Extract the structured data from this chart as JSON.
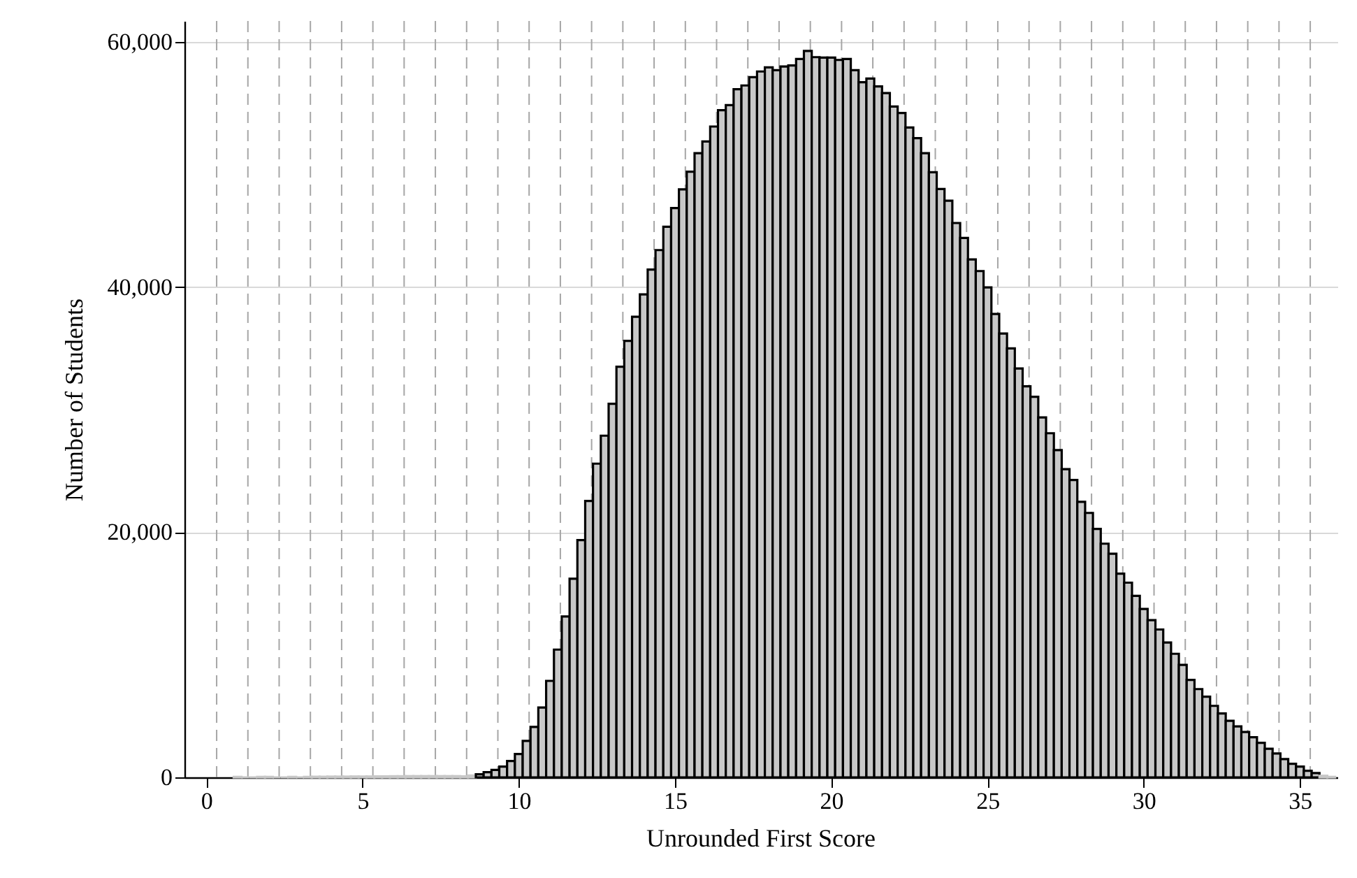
{
  "chart_data": {
    "type": "histogram",
    "xlabel": "Unrounded First Score",
    "ylabel": "Number of Students",
    "color": "#c8c8c8",
    "bins": [
      0.875,
      1.125,
      1.375,
      1.625,
      1.875,
      2.125,
      2.375,
      2.625,
      2.875,
      3.125,
      3.375,
      3.625,
      3.875,
      4.125,
      4.375,
      4.625,
      4.875,
      5.125,
      5.375,
      5.625,
      5.875,
      6.125,
      6.375,
      6.625,
      6.875,
      7.125,
      7.375,
      7.625,
      7.875,
      8.125,
      8.375,
      8.625,
      8.875,
      9.125,
      9.375,
      9.625,
      9.875,
      10.125,
      10.375,
      10.625,
      10.875,
      11.125,
      11.375,
      11.625,
      11.875,
      12.125,
      12.375,
      12.625,
      12.875,
      13.125,
      13.375,
      13.625,
      13.875,
      14.125,
      14.375,
      14.625,
      14.875,
      15.125,
      15.375,
      15.625,
      15.875,
      16.125,
      16.375,
      16.625,
      16.875,
      17.125,
      17.375,
      17.625,
      17.875,
      18.125,
      18.375,
      18.625,
      18.875,
      19.125,
      19.375,
      19.625,
      19.875,
      20.125,
      20.375,
      20.625,
      20.875,
      21.125,
      21.375,
      21.625,
      21.875,
      22.125,
      22.375,
      22.625,
      22.875,
      23.125,
      23.375,
      23.625,
      23.875,
      24.125,
      24.375,
      24.625,
      24.875,
      25.125,
      25.375,
      25.625,
      25.875,
      26.125,
      26.375,
      26.625,
      26.875,
      27.125,
      27.375,
      27.625,
      27.875,
      28.125,
      28.375,
      28.625,
      28.875,
      29.125,
      29.375,
      29.625,
      29.875,
      30.125,
      30.375,
      30.625,
      30.875,
      31.125,
      31.375,
      31.625,
      31.875,
      32.125,
      32.375,
      32.625,
      32.875,
      33.125,
      33.375,
      33.625,
      33.875,
      34.125,
      34.375,
      34.625,
      34.875,
      35.125,
      35.375,
      35.625,
      35.875,
      36.125
    ],
    "values": [
      40,
      0,
      0,
      40,
      40,
      0,
      0,
      40,
      0,
      40,
      50,
      50,
      60,
      60,
      60,
      70,
      70,
      70,
      80,
      80,
      90,
      90,
      100,
      100,
      100,
      100,
      100,
      100,
      100,
      80,
      150,
      250,
      420,
      610,
      880,
      1330,
      1900,
      2970,
      4110,
      5700,
      7870,
      10420,
      13120,
      16200,
      19350,
      22550,
      25590,
      27870,
      30470,
      33500,
      35600,
      37570,
      39400,
      41420,
      43010,
      44910,
      46440,
      47960,
      49400,
      50920,
      51870,
      53090,
      54420,
      54840,
      56130,
      56440,
      57120,
      57580,
      57920,
      57690,
      57990,
      58070,
      58600,
      59250,
      58750,
      58710,
      58710,
      58520,
      58600,
      57690,
      56700,
      57000,
      56360,
      55820,
      54720,
      54190,
      53010,
      52140,
      50920,
      49360,
      47990,
      47040,
      45220,
      44000,
      42250,
      41300,
      39970,
      37800,
      36200,
      34990,
      33350,
      31900,
      31040,
      29360,
      28070,
      26700,
      25140,
      24260,
      22480,
      21570,
      20270,
      19060,
      18240,
      16620,
      15880,
      14800,
      13730,
      12820,
      12060,
      11000,
      10080,
      9170,
      7950,
      7200,
      6580,
      5830,
      5210,
      4610,
      4150,
      3700,
      3270,
      2820,
      2330,
      1950,
      1490,
      1110,
      880,
      540,
      350,
      130,
      40
    ],
    "xlim": [
      -0.7,
      36.2
    ],
    "xticks": [
      0,
      5,
      10,
      15,
      20,
      25,
      30,
      35
    ],
    "ylim": [
      0,
      61700
    ],
    "yticks": [
      {
        "value": 0,
        "label": "0"
      },
      {
        "value": 20000,
        "label": "20,000"
      },
      {
        "value": 40000,
        "label": "40,000"
      },
      {
        "value": 60000,
        "label": "60,000"
      }
    ],
    "grid": "y",
    "ref_lines": [
      {
        "axis": "x",
        "value": 0.33,
        "color": "#a6a6a6",
        "line_style": "dashed"
      },
      {
        "axis": "x",
        "value": 1.33,
        "color": "#a6a6a6",
        "line_style": "dashed"
      },
      {
        "axis": "x",
        "value": 2.33,
        "color": "#a6a6a6",
        "line_style": "dashed"
      },
      {
        "axis": "x",
        "value": 3.33,
        "color": "#a6a6a6",
        "line_style": "dashed"
      },
      {
        "axis": "x",
        "value": 4.33,
        "color": "#a6a6a6",
        "line_style": "dashed"
      },
      {
        "axis": "x",
        "value": 5.33,
        "color": "#a6a6a6",
        "line_style": "dashed"
      },
      {
        "axis": "x",
        "value": 6.33,
        "color": "#a6a6a6",
        "line_style": "dashed"
      },
      {
        "axis": "x",
        "value": 7.33,
        "color": "#a6a6a6",
        "line_style": "dashed"
      },
      {
        "axis": "x",
        "value": 8.33,
        "color": "#a6a6a6",
        "line_style": "dashed"
      },
      {
        "axis": "x",
        "value": 9.33,
        "color": "#a6a6a6",
        "line_style": "dashed"
      },
      {
        "axis": "x",
        "value": 10.33,
        "color": "#a6a6a6",
        "line_style": "dashed"
      },
      {
        "axis": "x",
        "value": 11.33,
        "color": "#a6a6a6",
        "line_style": "dashed"
      },
      {
        "axis": "x",
        "value": 12.33,
        "color": "#a6a6a6",
        "line_style": "dashed"
      },
      {
        "axis": "x",
        "value": 13.33,
        "color": "#a6a6a6",
        "line_style": "dashed"
      },
      {
        "axis": "x",
        "value": 14.33,
        "color": "#a6a6a6",
        "line_style": "dashed"
      },
      {
        "axis": "x",
        "value": 15.33,
        "color": "#a6a6a6",
        "line_style": "dashed"
      },
      {
        "axis": "x",
        "value": 16.33,
        "color": "#a6a6a6",
        "line_style": "dashed"
      },
      {
        "axis": "x",
        "value": 17.33,
        "color": "#a6a6a6",
        "line_style": "dashed"
      },
      {
        "axis": "x",
        "value": 18.33,
        "color": "#a6a6a6",
        "line_style": "dashed"
      },
      {
        "axis": "x",
        "value": 19.33,
        "color": "#a6a6a6",
        "line_style": "dashed"
      },
      {
        "axis": "x",
        "value": 20.33,
        "color": "#a6a6a6",
        "line_style": "dashed"
      },
      {
        "axis": "x",
        "value": 21.33,
        "color": "#a6a6a6",
        "line_style": "dashed"
      },
      {
        "axis": "x",
        "value": 22.33,
        "color": "#a6a6a6",
        "line_style": "dashed"
      },
      {
        "axis": "x",
        "value": 23.33,
        "color": "#a6a6a6",
        "line_style": "dashed"
      },
      {
        "axis": "x",
        "value": 24.33,
        "color": "#a6a6a6",
        "line_style": "dashed"
      },
      {
        "axis": "x",
        "value": 25.33,
        "color": "#a6a6a6",
        "line_style": "dashed"
      },
      {
        "axis": "x",
        "value": 26.33,
        "color": "#a6a6a6",
        "line_style": "dashed"
      },
      {
        "axis": "x",
        "value": 27.33,
        "color": "#a6a6a6",
        "line_style": "dashed"
      },
      {
        "axis": "x",
        "value": 28.33,
        "color": "#a6a6a6",
        "line_style": "dashed"
      },
      {
        "axis": "x",
        "value": 29.33,
        "color": "#a6a6a6",
        "line_style": "dashed"
      },
      {
        "axis": "x",
        "value": 30.33,
        "color": "#a6a6a6",
        "line_style": "dashed"
      },
      {
        "axis": "x",
        "value": 31.33,
        "color": "#a6a6a6",
        "line_style": "dashed"
      },
      {
        "axis": "x",
        "value": 32.33,
        "color": "#a6a6a6",
        "line_style": "dashed"
      },
      {
        "axis": "x",
        "value": 33.33,
        "color": "#a6a6a6",
        "line_style": "dashed"
      },
      {
        "axis": "x",
        "value": 34.33,
        "color": "#a6a6a6",
        "line_style": "dashed"
      },
      {
        "axis": "x",
        "value": 35.33,
        "color": "#a6a6a6",
        "line_style": "dashed"
      }
    ]
  }
}
